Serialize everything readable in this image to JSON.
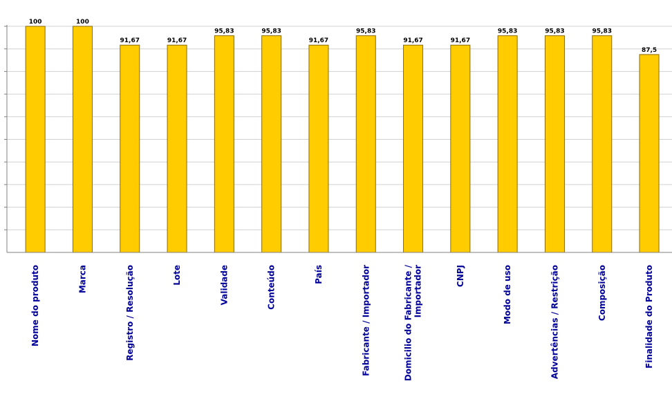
{
  "colors": {
    "bar_fill": "#ffcc00",
    "bar_stroke": "#8c6a00",
    "grid": "#d0d0d0",
    "axis": "#808080",
    "category_text": "#000099",
    "title_text": "#ff0000"
  },
  "chart_data": {
    "type": "bar",
    "title": "",
    "categories": [
      "Nome do produto",
      "Marca",
      "Registro / Resolução",
      "Lote",
      "Validade",
      "Conteúdo",
      "País",
      "Fabricante / Importador",
      "Domicilio do Fabricante / Importador",
      "CNPJ",
      "Modo de uso",
      "Advertências / Restrição",
      "Composição",
      "Finalidade do Produto"
    ],
    "values": [
      100,
      100,
      91.67,
      91.67,
      95.83,
      95.83,
      91.67,
      95.83,
      91.67,
      91.67,
      95.83,
      95.83,
      95.83,
      87.5
    ],
    "value_labels": [
      "100",
      "100",
      "91,67",
      "91,67",
      "95,83",
      "95,83",
      "91,67",
      "95,83",
      "91,67",
      "91,67",
      "95,83",
      "95,83",
      "95,83",
      "87,5"
    ],
    "ylim": [
      0,
      100
    ],
    "grid": true,
    "grid_step": 10,
    "xlabel": "",
    "ylabel": ""
  }
}
